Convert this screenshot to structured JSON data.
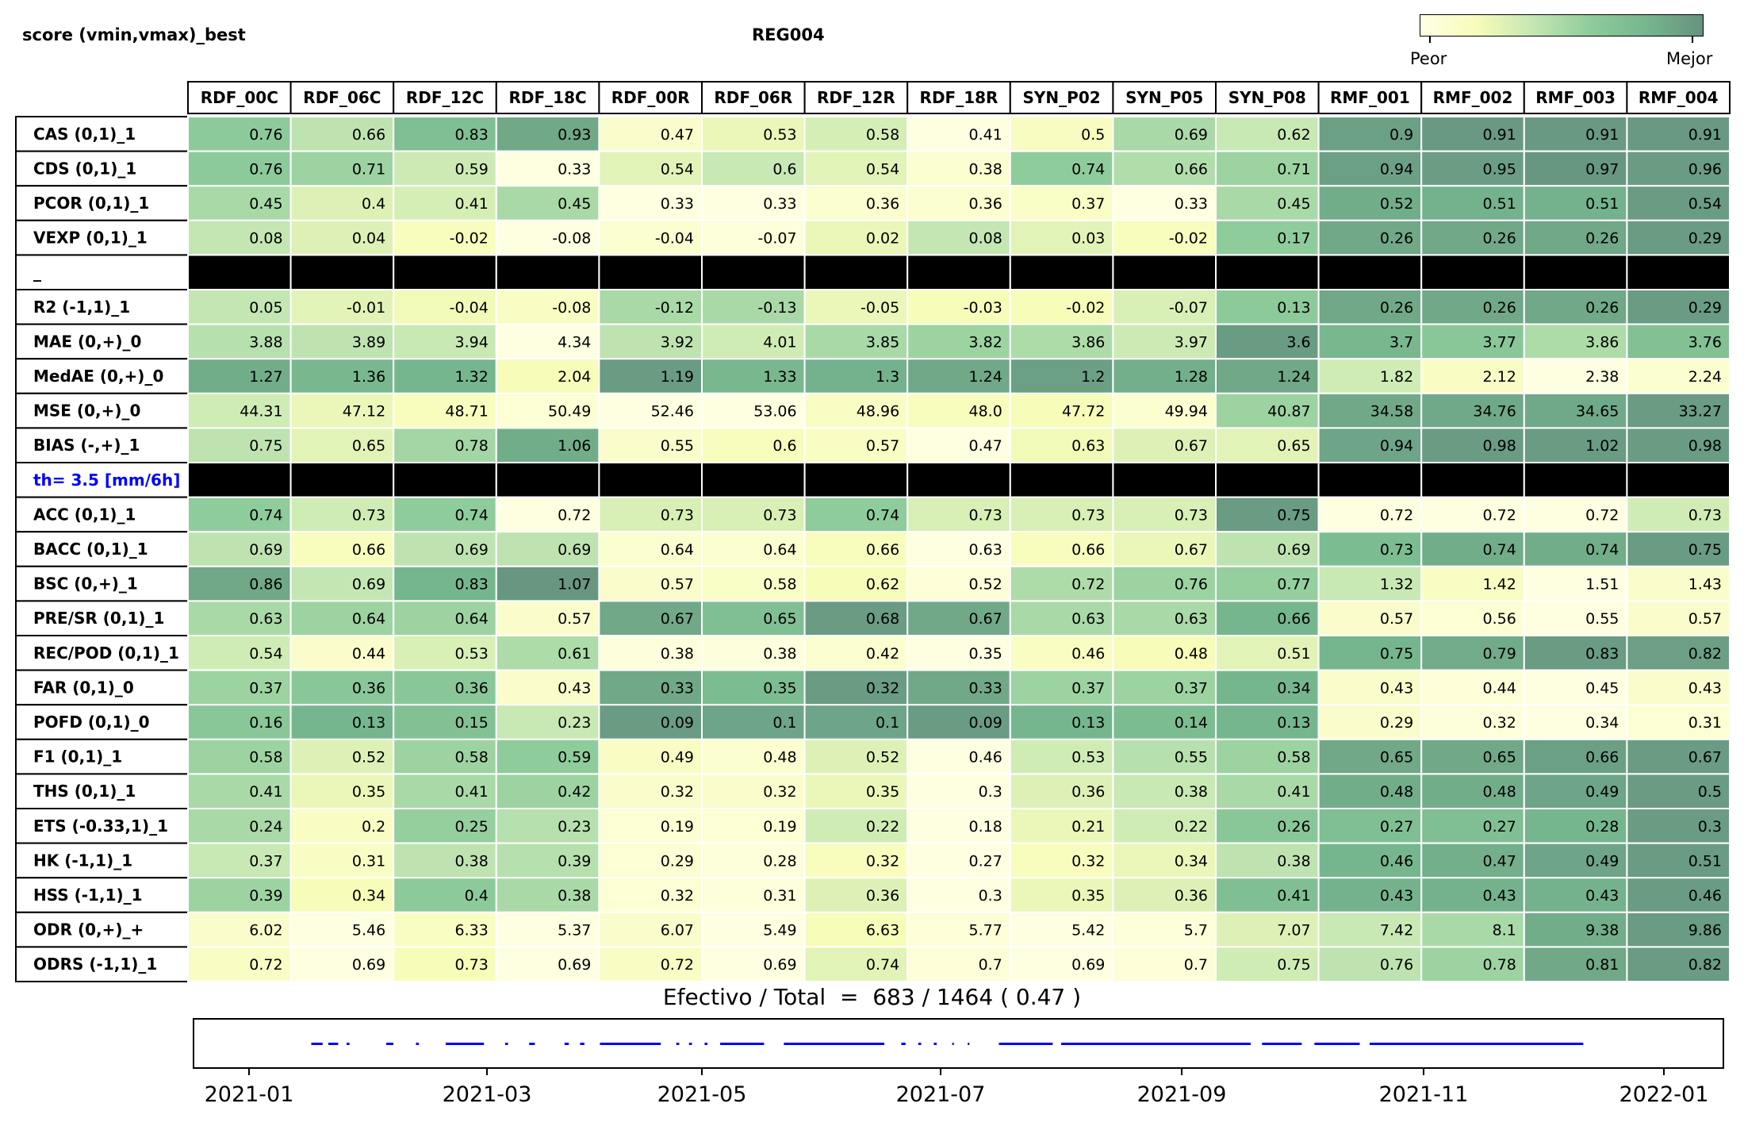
{
  "header": {
    "title_left": "score (vmin,vmax)_best",
    "title_center": "REG004",
    "colorbar_low": "Peor",
    "colorbar_high": "Mejor"
  },
  "colors": {
    "scale": [
      "#ffffe5",
      "#f7fcb9",
      "#c3e6b3",
      "#8fcc9b",
      "#76b68e",
      "#66927f"
    ],
    "separator": "#000000",
    "threshold_label": "#0000ff",
    "timeline": "#0000ff"
  },
  "chart_data": {
    "type": "heatmap",
    "columns": [
      "RDF_00C",
      "RDF_06C",
      "RDF_12C",
      "RDF_18C",
      "RDF_00R",
      "RDF_06R",
      "RDF_12R",
      "RDF_18R",
      "SYN_P02",
      "SYN_P05",
      "SYN_P08",
      "RMF_001",
      "RMF_002",
      "RMF_003",
      "RMF_004"
    ],
    "rows": [
      {
        "label": "CAS (0,1)_1",
        "values": [
          "0.76",
          "0.66",
          "0.83",
          "0.93",
          "0.47",
          "0.53",
          "0.58",
          "0.41",
          "0.5",
          "0.69",
          "0.62",
          "0.9",
          "0.91",
          "0.91",
          "0.91"
        ],
        "levels": [
          0.62,
          0.42,
          0.72,
          0.88,
          0.12,
          0.25,
          0.33,
          0.02,
          0.17,
          0.5,
          0.38,
          0.92,
          0.96,
          0.96,
          0.96
        ]
      },
      {
        "label": "CDS (0,1)_1",
        "values": [
          "0.76",
          "0.71",
          "0.59",
          "0.33",
          "0.54",
          "0.6",
          "0.54",
          "0.38",
          "0.74",
          "0.66",
          "0.71",
          "0.94",
          "0.95",
          "0.97",
          "0.96"
        ],
        "levels": [
          0.62,
          0.55,
          0.36,
          0.02,
          0.28,
          0.38,
          0.28,
          0.1,
          0.6,
          0.47,
          0.55,
          0.92,
          0.94,
          0.97,
          0.95
        ]
      },
      {
        "label": "PCOR (0,1)_1",
        "values": [
          "0.45",
          "0.4",
          "0.41",
          "0.45",
          "0.33",
          "0.33",
          "0.36",
          "0.36",
          "0.37",
          "0.33",
          "0.45",
          "0.52",
          "0.51",
          "0.51",
          "0.54"
        ],
        "levels": [
          0.5,
          0.3,
          0.33,
          0.5,
          0.02,
          0.02,
          0.1,
          0.1,
          0.14,
          0.02,
          0.5,
          0.85,
          0.82,
          0.82,
          0.95
        ]
      },
      {
        "label": "VEXP (0,1)_1",
        "values": [
          "0.08",
          "0.04",
          "-0.02",
          "-0.08",
          "-0.04",
          "-0.07",
          "0.02",
          "0.08",
          "0.03",
          "-0.02",
          "0.17",
          "0.26",
          "0.26",
          "0.26",
          "0.29"
        ],
        "levels": [
          0.4,
          0.3,
          0.18,
          0.02,
          0.1,
          0.05,
          0.25,
          0.4,
          0.28,
          0.18,
          0.6,
          0.88,
          0.88,
          0.88,
          0.95
        ]
      },
      {
        "separator": true,
        "label": "_"
      },
      {
        "label": "R2 (-1,1)_1",
        "values": [
          "0.05",
          "-0.01",
          "-0.04",
          "-0.08",
          "-0.12",
          "-0.13",
          "-0.05",
          "-0.03",
          "-0.02",
          "-0.07",
          "0.13",
          "0.26",
          "0.26",
          "0.26",
          "0.29"
        ],
        "levels": [
          0.4,
          0.28,
          0.22,
          0.15,
          0.5,
          0.5,
          0.25,
          0.2,
          0.2,
          0.32,
          0.62,
          0.88,
          0.88,
          0.88,
          0.95
        ]
      },
      {
        "label": "MAE (0,+)_0",
        "values": [
          "3.88",
          "3.89",
          "3.94",
          "4.34",
          "3.92",
          "4.01",
          "3.85",
          "3.82",
          "3.86",
          "3.97",
          "3.6",
          "3.7",
          "3.77",
          "3.86",
          "3.76"
        ],
        "levels": [
          0.45,
          0.42,
          0.38,
          0.02,
          0.42,
          0.35,
          0.5,
          0.55,
          0.48,
          0.36,
          0.95,
          0.78,
          0.65,
          0.48,
          0.7
        ]
      },
      {
        "label": "MedAE (0,+)_0",
        "values": [
          "1.27",
          "1.36",
          "1.32",
          "2.04",
          "1.19",
          "1.33",
          "1.3",
          "1.24",
          "1.2",
          "1.28",
          "1.24",
          "1.82",
          "2.12",
          "2.38",
          "2.24"
        ],
        "levels": [
          0.85,
          0.78,
          0.8,
          0.2,
          0.95,
          0.78,
          0.82,
          0.88,
          0.92,
          0.84,
          0.88,
          0.35,
          0.15,
          0.02,
          0.1
        ]
      },
      {
        "label": "MSE (0,+)_0",
        "values": [
          "44.31",
          "47.12",
          "48.71",
          "50.49",
          "52.46",
          "53.06",
          "48.96",
          "48.0",
          "47.72",
          "49.94",
          "40.87",
          "34.58",
          "34.76",
          "34.65",
          "33.27"
        ],
        "levels": [
          0.35,
          0.25,
          0.18,
          0.08,
          0.02,
          0.02,
          0.15,
          0.18,
          0.2,
          0.1,
          0.55,
          0.88,
          0.87,
          0.87,
          0.95
        ]
      },
      {
        "label": "BIAS (-,+)_1",
        "values": [
          "0.75",
          "0.65",
          "0.78",
          "1.06",
          "0.55",
          "0.6",
          "0.57",
          "0.47",
          "0.63",
          "0.67",
          "0.65",
          "0.94",
          "0.98",
          "1.02",
          "0.98"
        ],
        "levels": [
          0.42,
          0.28,
          0.52,
          0.85,
          0.12,
          0.18,
          0.15,
          0.02,
          0.22,
          0.3,
          0.28,
          0.9,
          0.95,
          0.95,
          0.95
        ]
      },
      {
        "separator": true,
        "label": "th= 3.5 [mm/6h]",
        "highlight": true
      },
      {
        "label": "ACC (0,1)_1",
        "values": [
          "0.74",
          "0.73",
          "0.74",
          "0.72",
          "0.73",
          "0.73",
          "0.74",
          "0.73",
          "0.73",
          "0.73",
          "0.75",
          "0.72",
          "0.72",
          "0.72",
          "0.73"
        ],
        "levels": [
          0.6,
          0.35,
          0.6,
          0.02,
          0.32,
          0.32,
          0.6,
          0.32,
          0.32,
          0.32,
          0.95,
          0.02,
          0.02,
          0.02,
          0.35
        ]
      },
      {
        "label": "BACC (0,1)_1",
        "values": [
          "0.69",
          "0.66",
          "0.69",
          "0.69",
          "0.64",
          "0.64",
          "0.66",
          "0.63",
          "0.66",
          "0.67",
          "0.69",
          "0.73",
          "0.74",
          "0.74",
          "0.75"
        ],
        "levels": [
          0.42,
          0.18,
          0.42,
          0.42,
          0.1,
          0.1,
          0.18,
          0.02,
          0.18,
          0.25,
          0.42,
          0.75,
          0.85,
          0.85,
          0.95
        ]
      },
      {
        "label": "BSC (0,+)_1",
        "values": [
          "0.86",
          "0.69",
          "0.83",
          "1.07",
          "0.57",
          "0.58",
          "0.62",
          "0.52",
          "0.72",
          "0.76",
          "0.77",
          "1.32",
          "1.42",
          "1.51",
          "1.43"
        ],
        "levels": [
          0.88,
          0.4,
          0.8,
          0.98,
          0.12,
          0.14,
          0.2,
          0.06,
          0.48,
          0.55,
          0.58,
          0.38,
          0.15,
          0.02,
          0.12
        ]
      },
      {
        "label": "PRE/SR (0,1)_1",
        "values": [
          "0.63",
          "0.64",
          "0.64",
          "0.57",
          "0.67",
          "0.65",
          "0.68",
          "0.67",
          "0.63",
          "0.63",
          "0.66",
          "0.57",
          "0.56",
          "0.55",
          "0.57"
        ],
        "levels": [
          0.5,
          0.55,
          0.55,
          0.12,
          0.88,
          0.72,
          0.95,
          0.88,
          0.5,
          0.5,
          0.8,
          0.12,
          0.08,
          0.02,
          0.12
        ]
      },
      {
        "label": "REC/POD (0,1)_1",
        "values": [
          "0.54",
          "0.44",
          "0.53",
          "0.61",
          "0.38",
          "0.38",
          "0.42",
          "0.35",
          "0.46",
          "0.48",
          "0.51",
          "0.75",
          "0.79",
          "0.83",
          "0.82"
        ],
        "levels": [
          0.35,
          0.12,
          0.32,
          0.48,
          0.04,
          0.04,
          0.1,
          0.02,
          0.16,
          0.2,
          0.28,
          0.8,
          0.86,
          0.95,
          0.93
        ]
      },
      {
        "label": "FAR (0,1)_0",
        "values": [
          "0.37",
          "0.36",
          "0.36",
          "0.43",
          "0.33",
          "0.35",
          "0.32",
          "0.33",
          "0.37",
          "0.37",
          "0.34",
          "0.43",
          "0.44",
          "0.45",
          "0.43"
        ],
        "levels": [
          0.55,
          0.65,
          0.65,
          0.12,
          0.88,
          0.75,
          0.95,
          0.88,
          0.55,
          0.55,
          0.8,
          0.12,
          0.06,
          0.02,
          0.12
        ]
      },
      {
        "label": "POFD (0,1)_0",
        "values": [
          "0.16",
          "0.13",
          "0.15",
          "0.23",
          "0.09",
          "0.1",
          "0.1",
          "0.09",
          "0.13",
          "0.14",
          "0.13",
          "0.29",
          "0.32",
          "0.34",
          "0.31"
        ],
        "levels": [
          0.65,
          0.8,
          0.7,
          0.38,
          0.95,
          0.9,
          0.9,
          0.95,
          0.8,
          0.75,
          0.8,
          0.12,
          0.05,
          0.02,
          0.08
        ]
      },
      {
        "label": "F1 (0,1)_1",
        "values": [
          "0.58",
          "0.52",
          "0.58",
          "0.59",
          "0.49",
          "0.48",
          "0.52",
          "0.46",
          "0.53",
          "0.55",
          "0.58",
          "0.65",
          "0.65",
          "0.66",
          "0.67"
        ],
        "levels": [
          0.55,
          0.3,
          0.55,
          0.6,
          0.15,
          0.1,
          0.3,
          0.02,
          0.35,
          0.45,
          0.55,
          0.88,
          0.88,
          0.92,
          0.95
        ]
      },
      {
        "label": "THS (0,1)_1",
        "values": [
          "0.41",
          "0.35",
          "0.41",
          "0.42",
          "0.32",
          "0.32",
          "0.35",
          "0.3",
          "0.36",
          "0.38",
          "0.41",
          "0.48",
          "0.48",
          "0.49",
          "0.5"
        ],
        "levels": [
          0.5,
          0.25,
          0.5,
          0.55,
          0.12,
          0.12,
          0.25,
          0.02,
          0.3,
          0.38,
          0.5,
          0.85,
          0.85,
          0.9,
          0.95
        ]
      },
      {
        "label": "ETS (-0.33,1)_1",
        "values": [
          "0.24",
          "0.2",
          "0.25",
          "0.23",
          "0.19",
          "0.19",
          "0.22",
          "0.18",
          "0.21",
          "0.22",
          "0.26",
          "0.27",
          "0.27",
          "0.28",
          "0.3"
        ],
        "levels": [
          0.5,
          0.15,
          0.58,
          0.45,
          0.08,
          0.08,
          0.35,
          0.02,
          0.25,
          0.35,
          0.65,
          0.72,
          0.72,
          0.8,
          0.95
        ]
      },
      {
        "label": "HK (-1,1)_1",
        "values": [
          "0.37",
          "0.31",
          "0.38",
          "0.39",
          "0.29",
          "0.28",
          "0.32",
          "0.27",
          "0.32",
          "0.34",
          "0.38",
          "0.46",
          "0.47",
          "0.49",
          "0.51"
        ],
        "levels": [
          0.38,
          0.15,
          0.42,
          0.45,
          0.08,
          0.05,
          0.18,
          0.02,
          0.18,
          0.25,
          0.42,
          0.8,
          0.84,
          0.9,
          0.95
        ]
      },
      {
        "label": "HSS (-1,1)_1",
        "values": [
          "0.39",
          "0.34",
          "0.4",
          "0.38",
          "0.32",
          "0.31",
          "0.36",
          "0.3",
          "0.35",
          "0.36",
          "0.41",
          "0.43",
          "0.43",
          "0.43",
          "0.46"
        ],
        "levels": [
          0.55,
          0.2,
          0.62,
          0.5,
          0.08,
          0.05,
          0.3,
          0.02,
          0.25,
          0.3,
          0.72,
          0.82,
          0.82,
          0.82,
          0.95
        ]
      },
      {
        "label": "ODR (0,+)_+",
        "values": [
          "6.02",
          "5.46",
          "6.33",
          "5.37",
          "6.07",
          "5.49",
          "6.63",
          "5.77",
          "5.42",
          "5.7",
          "7.07",
          "7.42",
          "8.1",
          "9.38",
          "9.86"
        ],
        "levels": [
          0.12,
          0.02,
          0.16,
          0.02,
          0.12,
          0.02,
          0.2,
          0.06,
          0.02,
          0.05,
          0.3,
          0.38,
          0.5,
          0.85,
          0.95
        ]
      },
      {
        "label": "ODRS (-1,1)_1",
        "values": [
          "0.72",
          "0.69",
          "0.73",
          "0.69",
          "0.72",
          "0.69",
          "0.74",
          "0.7",
          "0.69",
          "0.7",
          "0.75",
          "0.76",
          "0.78",
          "0.81",
          "0.82"
        ],
        "levels": [
          0.15,
          0.02,
          0.2,
          0.02,
          0.15,
          0.02,
          0.28,
          0.06,
          0.02,
          0.06,
          0.35,
          0.42,
          0.55,
          0.88,
          0.95
        ]
      }
    ]
  },
  "effective": {
    "label": "Efectivo / Total  =  683 / 1464 ( 0.47 )"
  },
  "timeline": {
    "ticks": [
      "2021-01",
      "2021-03",
      "2021-05",
      "2021-07",
      "2021-09",
      "2021-11",
      "2022-01"
    ],
    "segments": [
      [
        0.044,
        0.052
      ],
      [
        0.056,
        0.063
      ],
      [
        0.069,
        0.071
      ],
      [
        0.097,
        0.102
      ],
      [
        0.118,
        0.12
      ],
      [
        0.139,
        0.166
      ],
      [
        0.181,
        0.183
      ],
      [
        0.198,
        0.202
      ],
      [
        0.223,
        0.226
      ],
      [
        0.234,
        0.237
      ],
      [
        0.248,
        0.291
      ],
      [
        0.302,
        0.304
      ],
      [
        0.311,
        0.313
      ],
      [
        0.322,
        0.324
      ],
      [
        0.333,
        0.364
      ],
      [
        0.378,
        0.449
      ],
      [
        0.461,
        0.464
      ],
      [
        0.473,
        0.475
      ],
      [
        0.484,
        0.486
      ],
      [
        0.497,
        0.498
      ],
      [
        0.508,
        0.509
      ],
      [
        0.53,
        0.568
      ],
      [
        0.574,
        0.708
      ],
      [
        0.716,
        0.744
      ],
      [
        0.753,
        0.785
      ],
      [
        0.792,
        0.943
      ]
    ]
  }
}
